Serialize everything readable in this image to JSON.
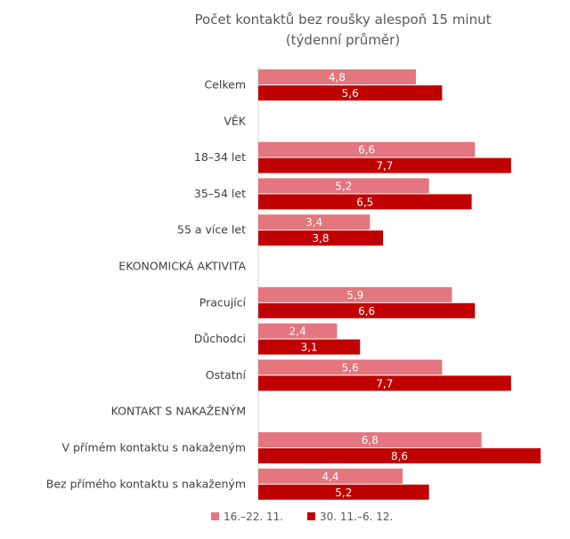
{
  "chart_data": {
    "type": "bar",
    "orientation": "horizontal",
    "title": "Počet kontaktů bez roušky alespoň 15 minut",
    "subtitle": "(týdenní průměr)",
    "categories": [
      "Celkem",
      "VĚK",
      "18–34 let",
      "35–54 let",
      "55 a více let",
      "EKONOMICKÁ AKTIVITA",
      "Pracující",
      "Důchodci",
      "Ostatní",
      "KONTAKT S NAKAŽENÝM",
      "V přímém kontaktu s nakaženým",
      "Bez přímého kontaktu s nakaženým"
    ],
    "series": [
      {
        "name": "16.–22. 11.",
        "color": "#E3767E",
        "values": [
          4.8,
          null,
          6.6,
          5.2,
          3.4,
          null,
          5.9,
          2.4,
          5.6,
          null,
          6.8,
          4.4
        ],
        "labels": [
          "4,8",
          "",
          "6,6",
          "5,2",
          "3,4",
          "",
          "5,9",
          "2,4",
          "5,6",
          "",
          "6,8",
          "4,4"
        ]
      },
      {
        "name": "30. 11.–6. 12.",
        "color": "#C00000",
        "values": [
          5.6,
          null,
          7.7,
          6.5,
          3.8,
          null,
          6.6,
          3.1,
          7.7,
          null,
          8.6,
          5.2
        ],
        "labels": [
          "5,6",
          "",
          "7,7",
          "6,5",
          "3,8",
          "",
          "6,6",
          "3,1",
          "7,7",
          "",
          "8,6",
          "5,2"
        ]
      }
    ],
    "xlim": [
      0,
      8.6
    ],
    "grid": false,
    "legend": "bottom"
  }
}
